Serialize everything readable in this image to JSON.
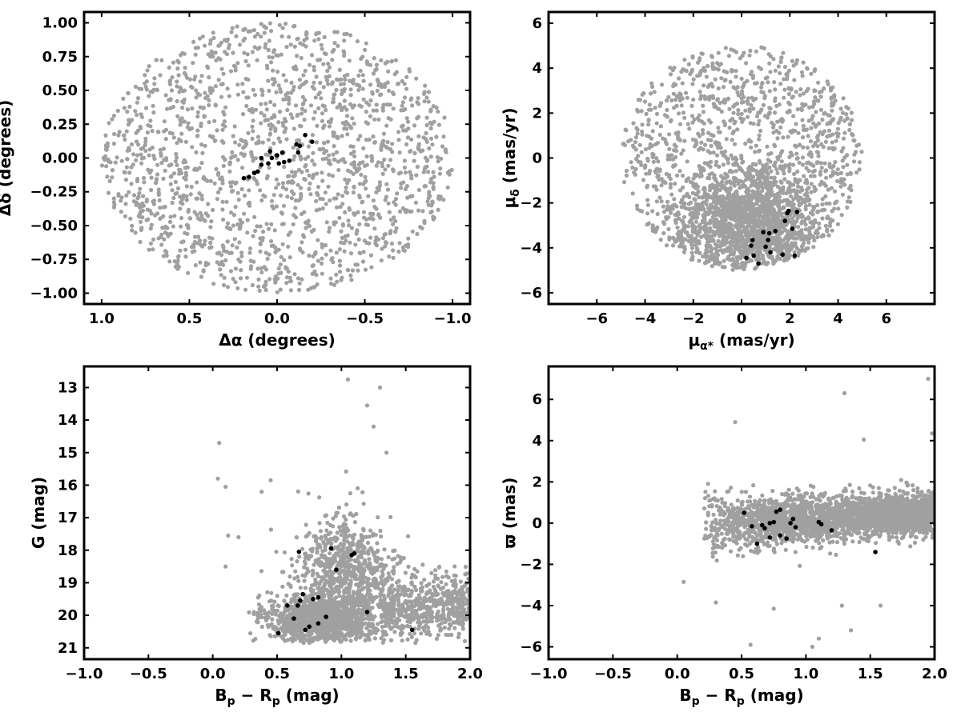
{
  "chart_data": [
    {
      "type": "scatter",
      "panel": "top-left",
      "xlabel": "Δα (degrees)",
      "ylabel": "Δδ (degrees)",
      "xlim": [
        1.1,
        -1.1
      ],
      "ylim": [
        -1.08,
        1.08
      ],
      "x_inverted": true,
      "xticks": [
        1.0,
        0.5,
        0.0,
        -0.5,
        -1.0
      ],
      "xtick_labels": [
        "1.0",
        "0.5",
        "0.0",
        "−0.5",
        "−1.0"
      ],
      "yticks": [
        -1.0,
        -0.75,
        -0.5,
        -0.25,
        0.0,
        0.25,
        0.5,
        0.75,
        1.0
      ],
      "ytick_labels": [
        "−1.00",
        "−0.75",
        "−0.50",
        "−0.25",
        "0.00",
        "0.25",
        "0.50",
        "0.75",
        "1.00"
      ],
      "series": [
        {
          "color": "#a0a0a0",
          "distribution": {
            "shape": "disk",
            "radius": 1.0,
            "center": [
              0,
              0
            ],
            "count": 1700,
            "seed": 11
          },
          "points": []
        },
        {
          "color": "#000000",
          "points": [
            [
              0.19,
              -0.15
            ],
            [
              0.16,
              -0.14
            ],
            [
              0.13,
              -0.11
            ],
            [
              0.11,
              -0.1
            ],
            [
              0.09,
              -0.05
            ],
            [
              0.05,
              -0.04
            ],
            [
              0.03,
              0.0
            ],
            [
              0.0,
              0.02
            ],
            [
              -0.03,
              0.04
            ],
            [
              0.04,
              0.05
            ],
            [
              0.09,
              0.0
            ],
            [
              -0.01,
              -0.04
            ],
            [
              -0.07,
              -0.02
            ],
            [
              -0.04,
              -0.03
            ],
            [
              -0.12,
              0.04
            ],
            [
              -0.11,
              0.1
            ],
            [
              -0.13,
              0.09
            ],
            [
              -0.16,
              0.17
            ],
            [
              -0.2,
              0.12
            ]
          ]
        }
      ]
    },
    {
      "type": "scatter",
      "panel": "top-right",
      "xlabel": "μα* (mas/yr)",
      "ylabel": "μδ (mas/yr)",
      "xlim": [
        -8,
        8
      ],
      "ylim": [
        -6.5,
        6.5
      ],
      "xticks": [
        -6,
        -4,
        -2,
        0,
        2,
        4,
        6
      ],
      "xtick_labels": [
        "−6",
        "−4",
        "−2",
        "0",
        "2",
        "4",
        "6"
      ],
      "yticks": [
        -6,
        -4,
        -2,
        0,
        2,
        4,
        6
      ],
      "ytick_labels": [
        "−6",
        "−4",
        "−2",
        "0",
        "2",
        "4",
        "6"
      ],
      "series": [
        {
          "color": "#a0a0a0",
          "distribution": {
            "shape": "truncated-disk",
            "center": [
              0,
              0
            ],
            "radius": 5.0,
            "ymin": -5.0,
            "core": [
              0.3,
              -2.8
            ],
            "core_sigma": [
              1.4,
              1.1
            ],
            "count": 2600,
            "seed": 23
          },
          "points": []
        },
        {
          "color": "#000000",
          "points": [
            [
              0.2,
              -4.45
            ],
            [
              0.4,
              -3.9
            ],
            [
              0.45,
              -3.65
            ],
            [
              0.5,
              -4.35
            ],
            [
              0.7,
              -4.7
            ],
            [
              0.9,
              -3.3
            ],
            [
              1.0,
              -3.95
            ],
            [
              1.1,
              -3.65
            ],
            [
              1.15,
              -3.35
            ],
            [
              1.2,
              -4.2
            ],
            [
              1.4,
              -3.25
            ],
            [
              1.7,
              -4.3
            ],
            [
              1.8,
              -2.8
            ],
            [
              1.9,
              -2.45
            ],
            [
              1.95,
              -2.35
            ],
            [
              2.1,
              -3.15
            ],
            [
              2.2,
              -4.35
            ],
            [
              2.3,
              -2.4
            ]
          ]
        }
      ]
    },
    {
      "type": "scatter",
      "panel": "bottom-left",
      "xlabel": "Bp − Rp (mag)",
      "ylabel": "G (mag)",
      "xlim": [
        -1.0,
        2.0
      ],
      "ylim": [
        21.35,
        12.35
      ],
      "y_inverted": true,
      "xticks": [
        -1.0,
        -0.5,
        0.0,
        0.5,
        1.0,
        1.5,
        2.0
      ],
      "xtick_labels": [
        "−1.0",
        "−0.5",
        "0.0",
        "0.5",
        "1.0",
        "1.5",
        "2.0"
      ],
      "yticks": [
        13,
        14,
        15,
        16,
        17,
        18,
        19,
        20,
        21
      ],
      "ytick_labels": [
        "13",
        "14",
        "15",
        "16",
        "17",
        "18",
        "19",
        "20",
        "21"
      ],
      "series": [
        {
          "color": "#a0a0a0",
          "distribution": {
            "shape": "cmd",
            "count": 2600,
            "seed": 37
          },
          "points": [
            [
              0.05,
              14.7
            ],
            [
              0.04,
              15.8
            ],
            [
              0.1,
              16.05
            ],
            [
              0.1,
              18.5
            ],
            [
              0.12,
              17.55
            ],
            [
              0.2,
              17.6
            ],
            [
              1.2,
              13.55
            ],
            [
              1.3,
              13.0
            ],
            [
              1.25,
              14.2
            ],
            [
              1.05,
              12.75
            ],
            [
              1.35,
              15.0
            ],
            [
              0.45,
              15.85
            ],
            [
              0.38,
              16.2
            ]
          ]
        },
        {
          "color": "#000000",
          "points": [
            [
              0.51,
              20.55
            ],
            [
              0.58,
              19.7
            ],
            [
              0.63,
              20.1
            ],
            [
              0.66,
              19.7
            ],
            [
              0.67,
              18.05
            ],
            [
              0.68,
              19.55
            ],
            [
              0.7,
              19.35
            ],
            [
              0.72,
              20.45
            ],
            [
              0.75,
              20.35
            ],
            [
              0.78,
              19.5
            ],
            [
              0.82,
              20.25
            ],
            [
              0.82,
              19.45
            ],
            [
              0.88,
              20.05
            ],
            [
              0.92,
              17.95
            ],
            [
              0.96,
              18.6
            ],
            [
              1.08,
              18.15
            ],
            [
              1.1,
              18.1
            ],
            [
              1.2,
              19.9
            ],
            [
              1.55,
              20.45
            ]
          ]
        }
      ]
    },
    {
      "type": "scatter",
      "panel": "bottom-right",
      "xlabel": "Bp − Rp (mag)",
      "ylabel": "ϖ (mas)",
      "xlim": [
        -1.0,
        2.0
      ],
      "ylim": [
        -6.6,
        7.6
      ],
      "xticks": [
        -1.0,
        -0.5,
        0.0,
        0.5,
        1.0,
        1.5,
        2.0
      ],
      "xtick_labels": [
        "−1.0",
        "−0.5",
        "0.0",
        "0.5",
        "1.0",
        "1.5",
        "2.0"
      ],
      "yticks": [
        -6,
        -4,
        -2,
        0,
        2,
        4,
        6
      ],
      "ytick_labels": [
        "−6",
        "−4",
        "−2",
        "0",
        "2",
        "4",
        "6"
      ],
      "series": [
        {
          "color": "#a0a0a0",
          "distribution": {
            "shape": "parallax-band",
            "count": 2600,
            "seed": 53
          },
          "points": [
            [
              0.05,
              -2.85
            ],
            [
              0.45,
              4.9
            ],
            [
              1.3,
              6.3
            ],
            [
              1.95,
              7.0
            ],
            [
              1.98,
              4.35
            ],
            [
              1.45,
              4.05
            ],
            [
              0.57,
              -5.9
            ],
            [
              1.35,
              -5.2
            ],
            [
              1.05,
              -6.0
            ],
            [
              1.1,
              -5.6
            ],
            [
              0.75,
              -4.15
            ],
            [
              1.58,
              -4.0
            ],
            [
              1.28,
              -4.0
            ],
            [
              0.3,
              -3.85
            ]
          ]
        },
        {
          "color": "#000000",
          "points": [
            [
              0.52,
              0.5
            ],
            [
              0.58,
              -0.15
            ],
            [
              0.62,
              -1.0
            ],
            [
              0.66,
              -0.1
            ],
            [
              0.68,
              -0.25
            ],
            [
              0.72,
              0.0
            ],
            [
              0.72,
              -0.7
            ],
            [
              0.75,
              0.05
            ],
            [
              0.77,
              0.55
            ],
            [
              0.8,
              0.65
            ],
            [
              0.8,
              -0.6
            ],
            [
              0.85,
              -0.75
            ],
            [
              0.88,
              0.0
            ],
            [
              0.9,
              0.2
            ],
            [
              0.92,
              -0.2
            ],
            [
              1.1,
              0.05
            ],
            [
              1.12,
              -0.05
            ],
            [
              1.2,
              -0.35
            ],
            [
              1.54,
              -1.4
            ]
          ]
        }
      ]
    }
  ]
}
